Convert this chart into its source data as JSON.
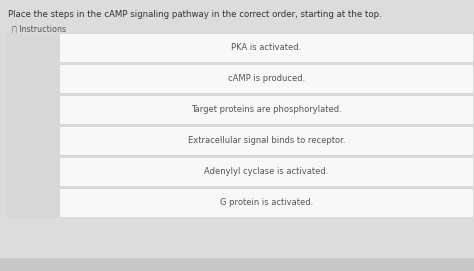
{
  "title": "Place the steps in the cAMP signaling pathway in the correct order, starting at the top.",
  "instructions_label": "ⓘ Instructions",
  "steps": [
    "PKA is activated.",
    "cAMP is produced.",
    "Target proteins are phosphorylated.",
    "Extracellular signal binds to receptor.",
    "Adenylyl cyclase is activated.",
    "G protein is activated."
  ],
  "bg_color": "#dcdcdc",
  "card_bg": "#f8f8f8",
  "card_border": "#c8c8c8",
  "left_panel_bg": "#d8d8d8",
  "title_color": "#333333",
  "text_color": "#555555",
  "instructions_color": "#555555",
  "title_fontsize": 6.2,
  "step_fontsize": 6.0,
  "instructions_fontsize": 5.8,
  "fig_width": 4.74,
  "fig_height": 2.71
}
